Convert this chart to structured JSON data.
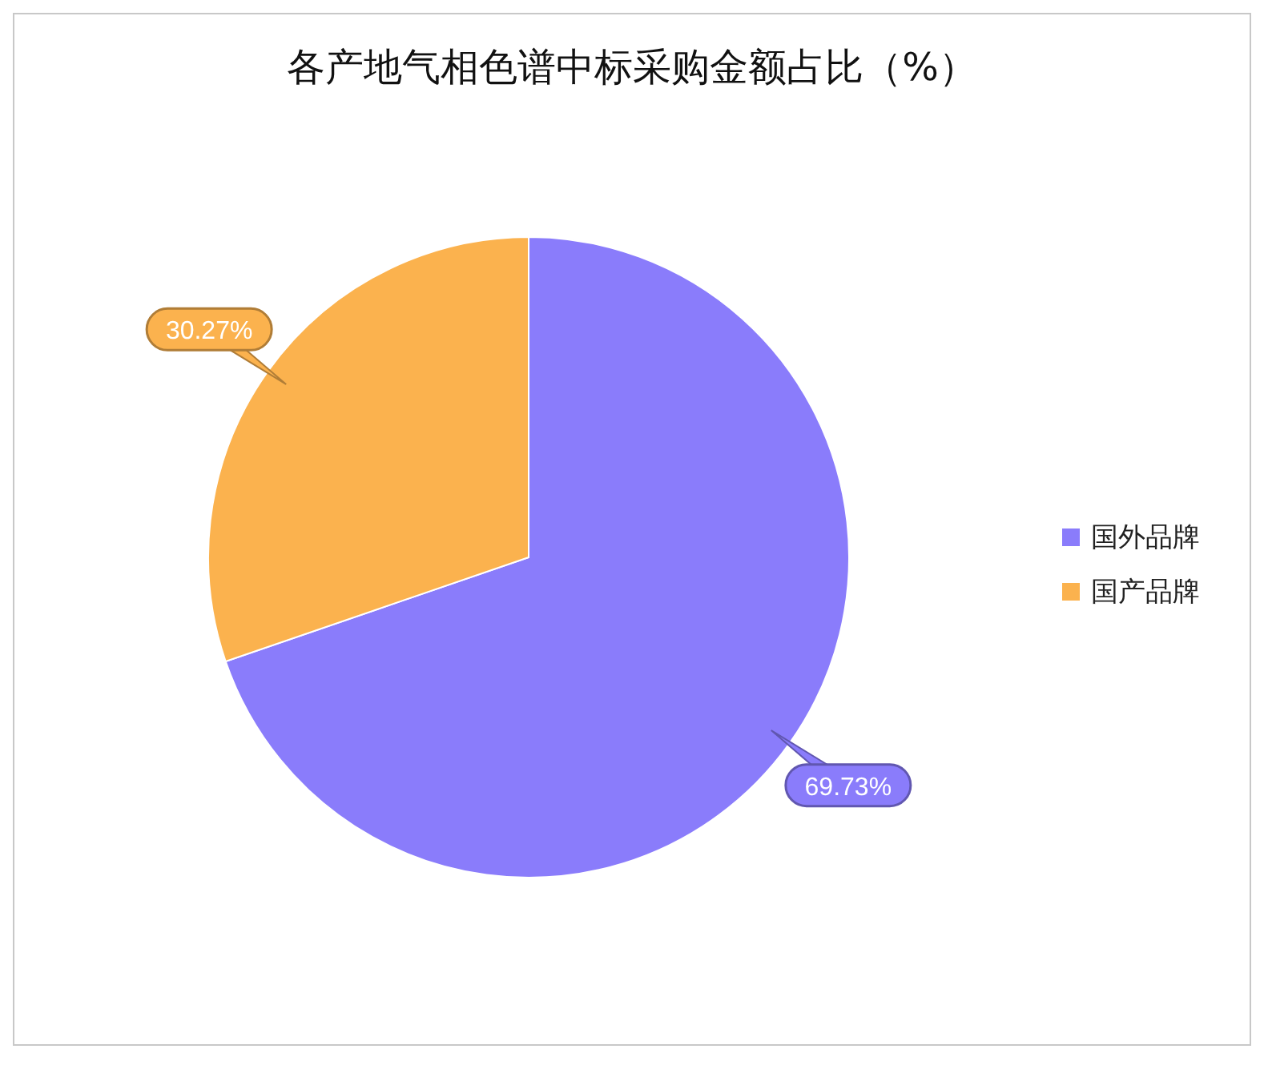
{
  "chart_data": {
    "type": "pie",
    "title": "各产地气相色谱中标采购金额占比（%）",
    "categories": [
      "国外品牌",
      "国产品牌"
    ],
    "values": [
      69.73,
      30.27
    ],
    "colors": [
      "#8a7cfb",
      "#fbb24e"
    ],
    "value_labels": [
      "69.73%",
      "30.27%"
    ],
    "legend": "right"
  }
}
